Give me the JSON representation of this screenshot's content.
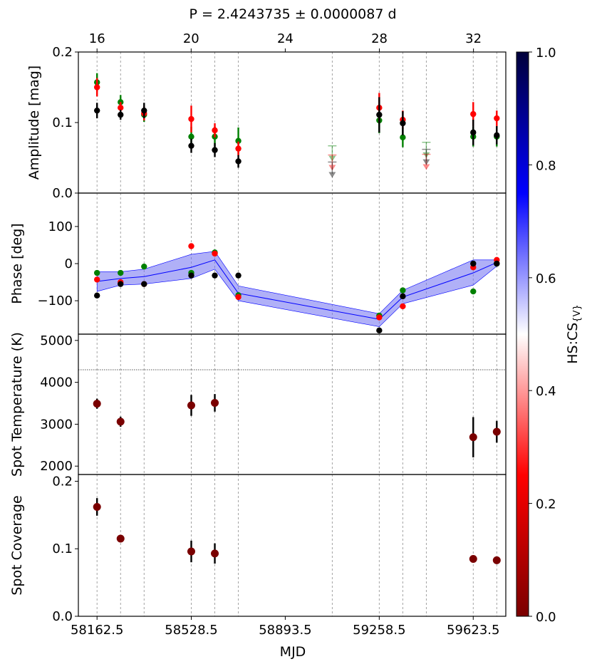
{
  "chart_data": {
    "type": "scatter",
    "title": "P = 2.4243735 ± 0.0000087 d",
    "xlabel": "MJD",
    "xlim": [
      58090,
      59750
    ],
    "x_ticks": [
      58162.5,
      58528.5,
      58893.5,
      59258.5,
      59623.5
    ],
    "x_tick_labels": [
      "58162.5",
      "58528.5",
      "58893.5",
      "59258.5",
      "59623.5"
    ],
    "top_axis": {
      "ticks": [
        16,
        20,
        24,
        28,
        32
      ],
      "tick_labels": [
        "16",
        "20",
        "24",
        "28",
        "32"
      ],
      "mjd_at_16": 58162.5,
      "mjd_per_unit": 91.375
    },
    "vertical_guides": [
      58162.5,
      58253.9,
      58345.3,
      58528.5,
      58619.9,
      58711.3,
      59076,
      59258.5,
      59349.9,
      59441.3,
      59623.5,
      59714.9
    ],
    "colorbar": {
      "label": "HS:CS",
      "label_sub": "{V}",
      "range": [
        0,
        1
      ],
      "ticks": [
        0,
        0.2,
        0.4,
        0.6,
        0.8,
        1.0
      ],
      "tick_labels": [
        "0.0",
        "0.2",
        "0.4",
        "0.6",
        "0.8",
        "1.0"
      ],
      "colors": [
        "#7a0000",
        "#ff0000",
        "#ffffff",
        "#0000ff",
        "#00003a"
      ]
    },
    "panels": [
      {
        "ylabel": "Amplitude [mag]",
        "ylim": [
          0,
          0.2
        ],
        "yticks": [
          0,
          0.1,
          0.2
        ],
        "ytick_labels": [
          "0.0",
          "0.1",
          "0.2"
        ],
        "series": [
          {
            "name": "green",
            "color": "#008000",
            "points": [
              {
                "x": 58162.5,
                "y": 0.157,
                "err": 0.013
              },
              {
                "x": 58253.9,
                "y": 0.129,
                "err": 0.01
              },
              {
                "x": 58345.3,
                "y": 0.111,
                "err": 0.01
              },
              {
                "x": 58528.5,
                "y": 0.08,
                "err": 0.014
              },
              {
                "x": 58619.9,
                "y": 0.08,
                "err": 0.014
              },
              {
                "x": 58711.3,
                "y": 0.074,
                "err": 0.019
              },
              {
                "x": 59258.5,
                "y": 0.103,
                "err": 0.018
              },
              {
                "x": 59349.9,
                "y": 0.079,
                "err": 0.014
              },
              {
                "x": 59623.5,
                "y": 0.08,
                "err": 0.014
              },
              {
                "x": 59714.9,
                "y": 0.08,
                "err": 0.014
              }
            ],
            "upper_limits": [
              {
                "x": 59076,
                "y": 0.067
              },
              {
                "x": 59441.3,
                "y": 0.072
              }
            ]
          },
          {
            "name": "red",
            "color": "#ff0000",
            "points": [
              {
                "x": 58162.5,
                "y": 0.15,
                "err": 0.013
              },
              {
                "x": 58253.9,
                "y": 0.121,
                "err": 0.008
              },
              {
                "x": 58345.3,
                "y": 0.113,
                "err": 0.01
              },
              {
                "x": 58528.5,
                "y": 0.105,
                "err": 0.019
              },
              {
                "x": 58619.9,
                "y": 0.089,
                "err": 0.01
              },
              {
                "x": 58711.3,
                "y": 0.063,
                "err": 0.01
              },
              {
                "x": 59258.5,
                "y": 0.121,
                "err": 0.021
              },
              {
                "x": 59349.9,
                "y": 0.104,
                "err": 0.013
              },
              {
                "x": 59623.5,
                "y": 0.112,
                "err": 0.017
              },
              {
                "x": 59714.9,
                "y": 0.106,
                "err": 0.011
              }
            ],
            "upper_limits": [
              {
                "x": 59076,
                "y": 0.054
              },
              {
                "x": 59441.3,
                "y": 0.055
              }
            ]
          },
          {
            "name": "black",
            "color": "#000000",
            "points": [
              {
                "x": 58162.5,
                "y": 0.117,
                "err": 0.011
              },
              {
                "x": 58253.9,
                "y": 0.111,
                "err": 0.007
              },
              {
                "x": 58345.3,
                "y": 0.117,
                "err": 0.011
              },
              {
                "x": 58528.5,
                "y": 0.067,
                "err": 0.01
              },
              {
                "x": 58619.9,
                "y": 0.061,
                "err": 0.01
              },
              {
                "x": 58711.3,
                "y": 0.045,
                "err": 0.009
              },
              {
                "x": 59258.5,
                "y": 0.111,
                "err": 0.025
              },
              {
                "x": 59349.9,
                "y": 0.099,
                "err": 0.017
              },
              {
                "x": 59623.5,
                "y": 0.086,
                "err": 0.018
              },
              {
                "x": 59714.9,
                "y": 0.082,
                "err": 0.013
              }
            ],
            "upper_limits": [
              {
                "x": 59076,
                "y": 0.044
              },
              {
                "x": 59441.3,
                "y": 0.062
              }
            ]
          }
        ]
      },
      {
        "ylabel": "Phase [deg]",
        "ylim": [
          -190,
          190
        ],
        "yticks": [
          -100,
          0,
          100
        ],
        "ytick_labels": [
          "−100",
          "0",
          "100"
        ],
        "band": {
          "x": [
            58162.5,
            58253.9,
            58345.3,
            58528.5,
            58619.9,
            58711.3,
            59258.5,
            59349.9,
            59623.5,
            59714.9
          ],
          "mid": [
            -48,
            -40,
            -35,
            -10,
            10,
            -80,
            -150,
            -90,
            -25,
            3
          ],
          "lower": [
            -75,
            -58,
            -55,
            -40,
            -15,
            -100,
            -170,
            -108,
            -58,
            -7
          ],
          "upper": [
            -22,
            -22,
            -15,
            25,
            33,
            -60,
            -135,
            -72,
            10,
            10
          ],
          "fill": "#7070f0",
          "line": "#0000ff"
        },
        "series": [
          {
            "name": "green",
            "color": "#008000",
            "points": [
              {
                "x": 58162.5,
                "y": -25
              },
              {
                "x": 58253.9,
                "y": -25
              },
              {
                "x": 58345.3,
                "y": -8
              },
              {
                "x": 58528.5,
                "y": -25
              },
              {
                "x": 58619.9,
                "y": 30
              },
              {
                "x": 58711.3,
                "y": -85
              },
              {
                "x": 59258.5,
                "y": -140
              },
              {
                "x": 59349.9,
                "y": -72
              },
              {
                "x": 59623.5,
                "y": -75
              },
              {
                "x": 59714.9,
                "y": 0
              }
            ]
          },
          {
            "name": "red",
            "color": "#ff0000",
            "points": [
              {
                "x": 58162.5,
                "y": -43
              },
              {
                "x": 58253.9,
                "y": -50
              },
              {
                "x": 58345.3,
                "y": -55
              },
              {
                "x": 58528.5,
                "y": 47
              },
              {
                "x": 58619.9,
                "y": 27
              },
              {
                "x": 58711.3,
                "y": -90
              },
              {
                "x": 59258.5,
                "y": -145
              },
              {
                "x": 59349.9,
                "y": -115
              },
              {
                "x": 59623.5,
                "y": -10
              },
              {
                "x": 59714.9,
                "y": 10
              }
            ]
          },
          {
            "name": "black",
            "color": "#000000",
            "points": [
              {
                "x": 58162.5,
                "y": -86
              },
              {
                "x": 58253.9,
                "y": -55
              },
              {
                "x": 58345.3,
                "y": -55
              },
              {
                "x": 58528.5,
                "y": -32
              },
              {
                "x": 58619.9,
                "y": -32
              },
              {
                "x": 58711.3,
                "y": -32
              },
              {
                "x": 59258.5,
                "y": -180
              },
              {
                "x": 59349.9,
                "y": -88
              },
              {
                "x": 59623.5,
                "y": 0
              },
              {
                "x": 59714.9,
                "y": 0
              }
            ]
          }
        ]
      },
      {
        "ylabel": "Spot Temperature (K)",
        "ylim": [
          1800,
          5150
        ],
        "yticks": [
          2000,
          3000,
          4000,
          5000
        ],
        "ytick_labels": [
          "2000",
          "3000",
          "4000",
          "5000"
        ],
        "hline": 4300,
        "series": [
          {
            "name": "spot temperature",
            "color": "#7a0000",
            "points": [
              {
                "x": 58162.5,
                "y": 3490,
                "err": 120
              },
              {
                "x": 58253.9,
                "y": 3060,
                "err": 120
              },
              {
                "x": 58528.5,
                "y": 3450,
                "err": 250
              },
              {
                "x": 58619.9,
                "y": 3510,
                "err": 210
              },
              {
                "x": 59623.5,
                "y": 2690,
                "err": 480
              },
              {
                "x": 59714.9,
                "y": 2820,
                "err": 260
              }
            ]
          }
        ]
      },
      {
        "ylabel": "Spot Coverage",
        "ylim": [
          0,
          0.21
        ],
        "yticks": [
          0,
          0.1,
          0.2
        ],
        "ytick_labels": [
          "0.0",
          "0.1",
          "0.2"
        ],
        "series": [
          {
            "name": "spot coverage",
            "color": "#7a0000",
            "points": [
              {
                "x": 58162.5,
                "y": 0.162,
                "err": 0.013
              },
              {
                "x": 58253.9,
                "y": 0.115,
                "err": 0.004
              },
              {
                "x": 58528.5,
                "y": 0.096,
                "err": 0.016
              },
              {
                "x": 58619.9,
                "y": 0.093,
                "err": 0.015
              },
              {
                "x": 59623.5,
                "y": 0.085,
                "err": 0.005
              },
              {
                "x": 59714.9,
                "y": 0.083,
                "err": 0.005
              }
            ]
          }
        ]
      }
    ]
  }
}
